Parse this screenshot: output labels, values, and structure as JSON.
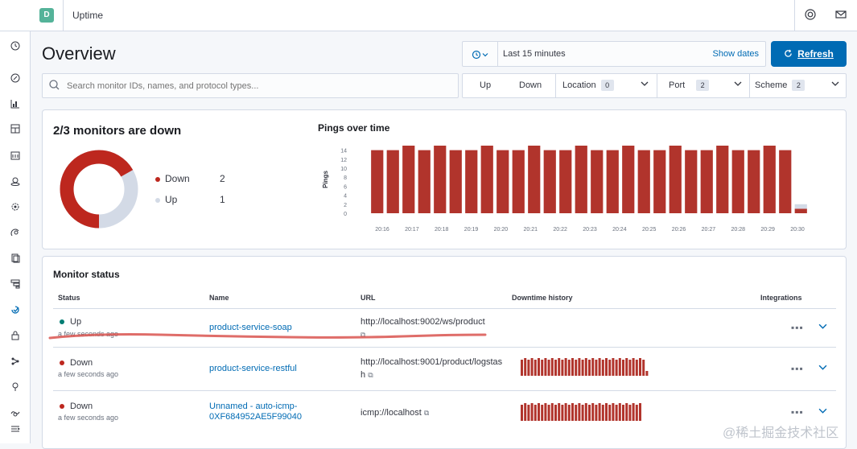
{
  "topbar": {
    "space_initial": "D",
    "app_title": "Uptime",
    "help_icon": "help-ring-icon",
    "mail_icon": "mail-icon"
  },
  "sidenav": {
    "icons": [
      "clock-icon",
      "compass-icon",
      "visualize-icon",
      "dashboard-icon",
      "canvas-icon",
      "maps-icon",
      "ml-icon",
      "metrics-icon",
      "logs-icon",
      "apm-icon",
      "uptime-icon",
      "siem-icon",
      "graph-icon",
      "dev-tools-icon",
      "monitoring-icon",
      "collapse-icon"
    ]
  },
  "header": {
    "title": "Overview",
    "date_range": "Last 15 minutes",
    "show_dates": "Show dates",
    "refresh_label": "Refresh"
  },
  "search": {
    "placeholder": "Search monitor IDs, names, and protocol types..."
  },
  "filters": {
    "up": "Up",
    "down": "Down",
    "location": {
      "label": "Location",
      "count": "0"
    },
    "port": {
      "label": "Port",
      "count": "2"
    },
    "scheme": {
      "label": "Scheme",
      "count": "2"
    }
  },
  "snapshot": {
    "title": "2/3 monitors are down",
    "legend": [
      {
        "label": "Down",
        "count": "2",
        "color": "#bd271e"
      },
      {
        "label": "Up",
        "count": "1",
        "color": "#d3dae6"
      }
    ],
    "down_fraction": 0.6667
  },
  "chart_data": {
    "type": "bar",
    "title": "Pings over time",
    "ylabel": "Pings",
    "xlabel": "",
    "ylim": [
      0,
      15
    ],
    "yticks": [
      0,
      2,
      4,
      6,
      8,
      10,
      12,
      14
    ],
    "xtick_labels": [
      "20:16",
      "20:17",
      "20:18",
      "20:19",
      "20:20",
      "20:21",
      "20:22",
      "20:23",
      "20:24",
      "20:25",
      "20:26",
      "20:27",
      "20:28",
      "20:29",
      "20:30"
    ],
    "series": [
      {
        "name": "Down",
        "color": "#b1342c",
        "values": [
          14,
          14,
          15,
          14,
          15,
          14,
          14,
          15,
          14,
          14,
          15,
          14,
          14,
          15,
          14,
          14,
          15,
          14,
          14,
          15,
          14,
          14,
          15,
          14,
          14,
          15,
          14,
          1
        ]
      },
      {
        "name": "Up",
        "color": "#d3dae6",
        "values": [
          0,
          0,
          0,
          0,
          0,
          0,
          0,
          0,
          0,
          0,
          0,
          0,
          0,
          0,
          0,
          0,
          0,
          0,
          0,
          0,
          0,
          0,
          0,
          0,
          0,
          0,
          0,
          1
        ]
      }
    ]
  },
  "monitor_status": {
    "title": "Monitor status",
    "columns": [
      "Status",
      "Name",
      "URL",
      "Downtime history",
      "Integrations"
    ],
    "rows": [
      {
        "status": "Up",
        "status_color": "#017d73",
        "time": "a few seconds ago",
        "name": "product-service-soap",
        "url": "http://localhost:9002/ws/product",
        "history": []
      },
      {
        "status": "Down",
        "status_color": "#bd271e",
        "time": "a few seconds ago",
        "name": "product-service-restful",
        "url": "http://localhost:9001/product/logstash",
        "history": [
          10,
          11,
          10,
          11,
          10,
          11,
          10,
          11,
          10,
          11,
          10,
          11,
          10,
          11,
          10,
          11,
          10,
          11,
          10,
          11,
          10,
          11,
          10,
          11,
          10,
          11,
          10,
          11,
          10,
          11,
          10,
          11,
          10,
          11,
          10,
          11,
          10,
          3
        ]
      },
      {
        "status": "Down",
        "status_color": "#bd271e",
        "time": "a few seconds ago",
        "name": "Unnamed - auto-icmp-0XF684952AE5F99040",
        "url": "icmp://localhost",
        "history": [
          10,
          11,
          10,
          11,
          10,
          11,
          10,
          11,
          10,
          11,
          10,
          11,
          10,
          11,
          10,
          11,
          10,
          11,
          10,
          11,
          10,
          11,
          10,
          11,
          10,
          11,
          10,
          11,
          10,
          11,
          10,
          11,
          10,
          11,
          10,
          11
        ]
      }
    ],
    "more_icon": "more-dots-icon",
    "expand_icon": "chevron-down-icon"
  },
  "watermark": "@稀土掘金技术社区"
}
